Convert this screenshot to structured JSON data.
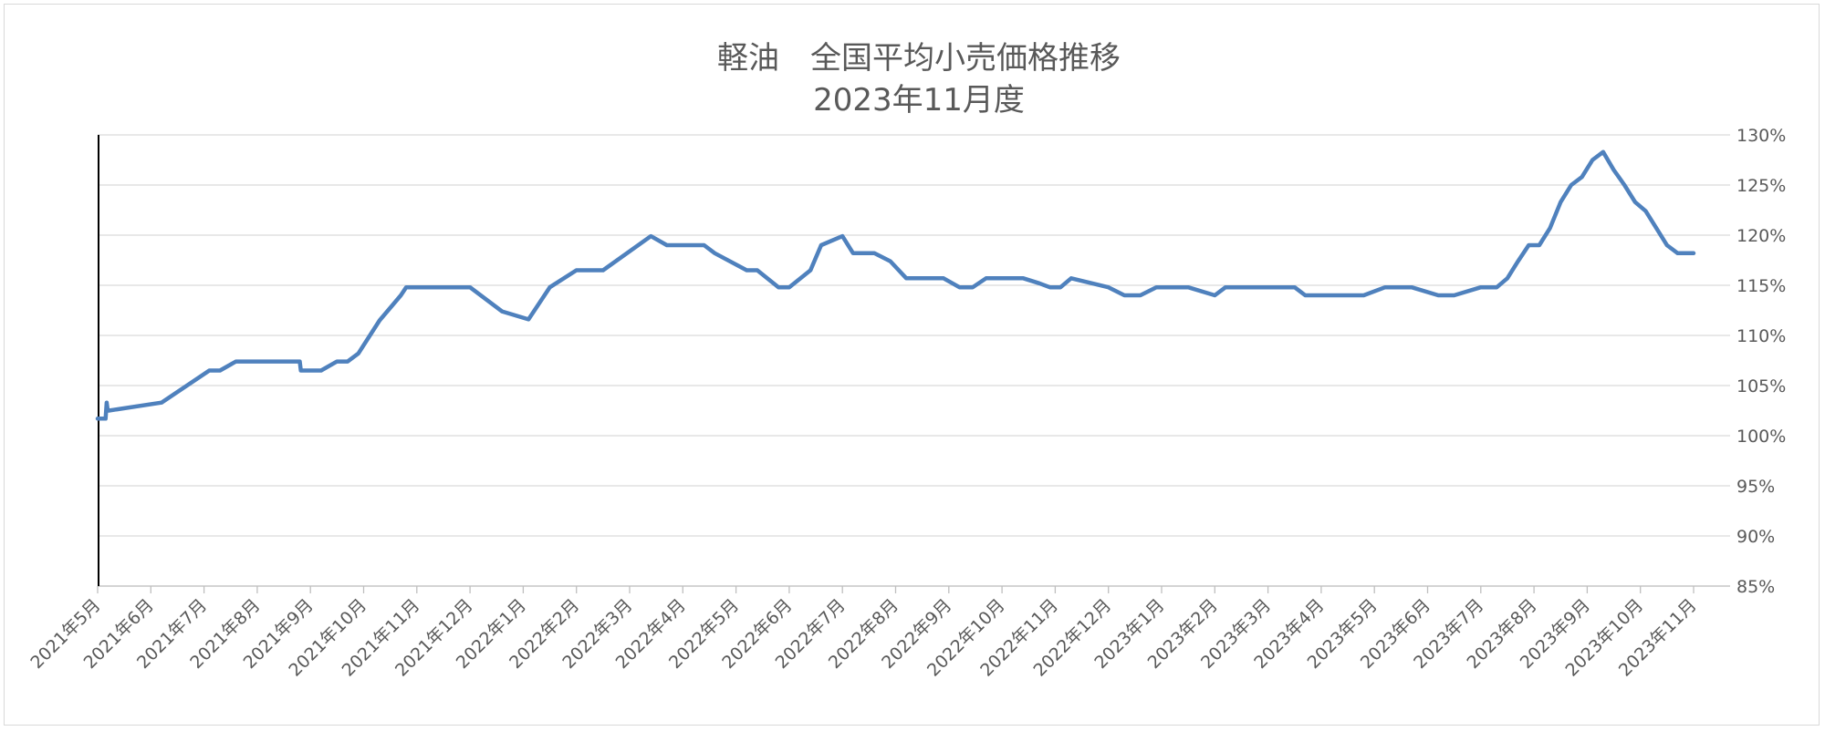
{
  "chart_data": {
    "type": "line",
    "title": "軽油　全国平均小売価格推移",
    "subtitle": "2023年11月度",
    "xlabel": "",
    "ylabel": "",
    "ylim": [
      0.85,
      1.3
    ],
    "y_ticks": [
      "85%",
      "90%",
      "95%",
      "100%",
      "105%",
      "110%",
      "115%",
      "120%",
      "125%",
      "130%"
    ],
    "y_tick_values": [
      0.85,
      0.9,
      0.95,
      1.0,
      1.05,
      1.1,
      1.15,
      1.2,
      1.25,
      1.3
    ],
    "y_axis_side": "right",
    "grid": true,
    "legend": "none",
    "line_color": "#4F81BD",
    "categories": [
      "2021年5月",
      "2021年6月",
      "2021年7月",
      "2021年8月",
      "2021年9月",
      "2021年10月",
      "2021年11月",
      "2021年12月",
      "2022年1月",
      "2022年2月",
      "2022年3月",
      "2022年4月",
      "2022年5月",
      "2022年6月",
      "2022年7月",
      "2022年8月",
      "2022年9月",
      "2022年10月",
      "2022年11月",
      "2022年12月",
      "2023年1月",
      "2023年2月",
      "2023年3月",
      "2023年4月",
      "2023年5月",
      "2023年6月",
      "2023年7月",
      "2023年8月",
      "2023年9月",
      "2023年10月",
      "2023年11月"
    ],
    "series": [
      {
        "x": [
          0.0,
          0.15,
          0.17,
          0.19,
          0.21,
          1.2,
          2.1,
          2.3,
          2.6,
          3.8,
          3.82,
          4.2,
          4.5,
          4.7,
          4.9,
          5.3,
          5.7,
          5.8,
          6.0,
          7.0,
          7.6,
          8.1,
          8.5,
          9.0,
          9.5,
          10.4,
          10.7,
          11.4,
          11.6,
          12.2,
          12.4,
          12.8,
          13.0,
          13.4,
          13.6,
          14.0,
          14.2,
          14.6,
          14.9,
          15.2,
          15.9,
          16.2,
          16.45,
          16.7,
          17.4,
          17.7,
          17.9,
          18.1,
          18.3,
          19.0,
          19.3,
          19.6,
          19.9,
          20.5,
          21.0,
          21.2,
          22.0,
          22.5,
          22.7,
          23.2,
          23.8,
          24.2,
          24.5,
          24.7,
          25.2,
          25.5,
          26.0,
          26.3,
          26.5,
          26.7,
          26.9,
          27.1,
          27.3,
          27.5,
          27.7,
          27.9,
          28.1,
          28.3,
          28.5,
          28.7,
          28.9,
          29.1,
          29.3,
          29.5,
          29.7,
          29.9,
          30.0
        ],
        "values": [
          1.017,
          1.017,
          1.033,
          1.025,
          1.025,
          1.033,
          1.065,
          1.065,
          1.074,
          1.074,
          1.065,
          1.065,
          1.074,
          1.074,
          1.082,
          1.115,
          1.14,
          1.148,
          1.148,
          1.148,
          1.124,
          1.116,
          1.148,
          1.165,
          1.165,
          1.199,
          1.19,
          1.19,
          1.182,
          1.165,
          1.165,
          1.148,
          1.148,
          1.165,
          1.19,
          1.199,
          1.182,
          1.182,
          1.174,
          1.157,
          1.157,
          1.148,
          1.148,
          1.157,
          1.157,
          1.152,
          1.148,
          1.148,
          1.157,
          1.148,
          1.14,
          1.14,
          1.148,
          1.148,
          1.14,
          1.148,
          1.148,
          1.148,
          1.14,
          1.14,
          1.14,
          1.148,
          1.148,
          1.148,
          1.14,
          1.14,
          1.148,
          1.148,
          1.157,
          1.174,
          1.19,
          1.19,
          1.207,
          1.233,
          1.25,
          1.258,
          1.275,
          1.283,
          1.265,
          1.25,
          1.233,
          1.224,
          1.207,
          1.19,
          1.182,
          1.182,
          1.182
        ]
      }
    ]
  }
}
